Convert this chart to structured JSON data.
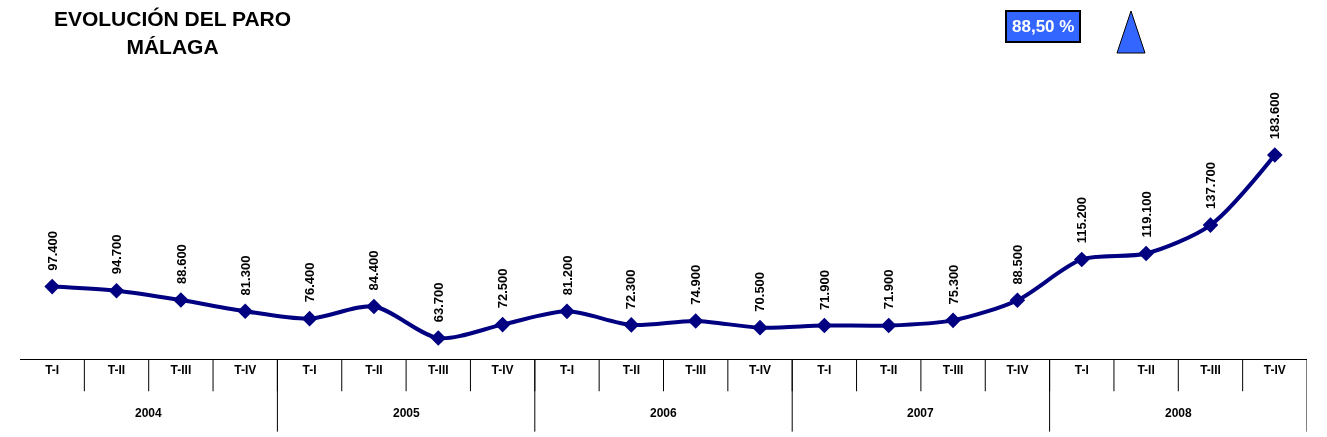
{
  "chart_data": {
    "type": "line",
    "title": "EVOLUCIÓN DEL PARO\nMÁLAGA",
    "categories": [
      "T-I",
      "T-II",
      "T-III",
      "T-IV",
      "T-I",
      "T-II",
      "T-III",
      "T-IV",
      "T-I",
      "T-II",
      "T-III",
      "T-IV",
      "T-I",
      "T-II",
      "T-III",
      "T-IV",
      "T-I",
      "T-II",
      "T-III",
      "T-IV"
    ],
    "series": [
      {
        "color": "#000080",
        "values": [
          97400,
          94700,
          88600,
          81300,
          76400,
          84400,
          63700,
          72500,
          81200,
          72300,
          74900,
          70500,
          71900,
          71900,
          75300,
          88500,
          115200,
          119100,
          137700,
          183600
        ],
        "value_labels": [
          "97.400",
          "94.700",
          "88.600",
          "81.300",
          "76.400",
          "84.400",
          "63.700",
          "72.500",
          "81.200",
          "72.300",
          "74.900",
          "70.500",
          "71.900",
          "71.900",
          "75.300",
          "88.500",
          "115.200",
          "119.100",
          "137.700",
          "183.600"
        ]
      }
    ],
    "annotations": [
      "88,50 %",
      "2004",
      "2005",
      "2006",
      "2007",
      "2008"
    ],
    "tick_labels": "x",
    "marker": "diamond",
    "line_style": "solid",
    "grid": false
  }
}
